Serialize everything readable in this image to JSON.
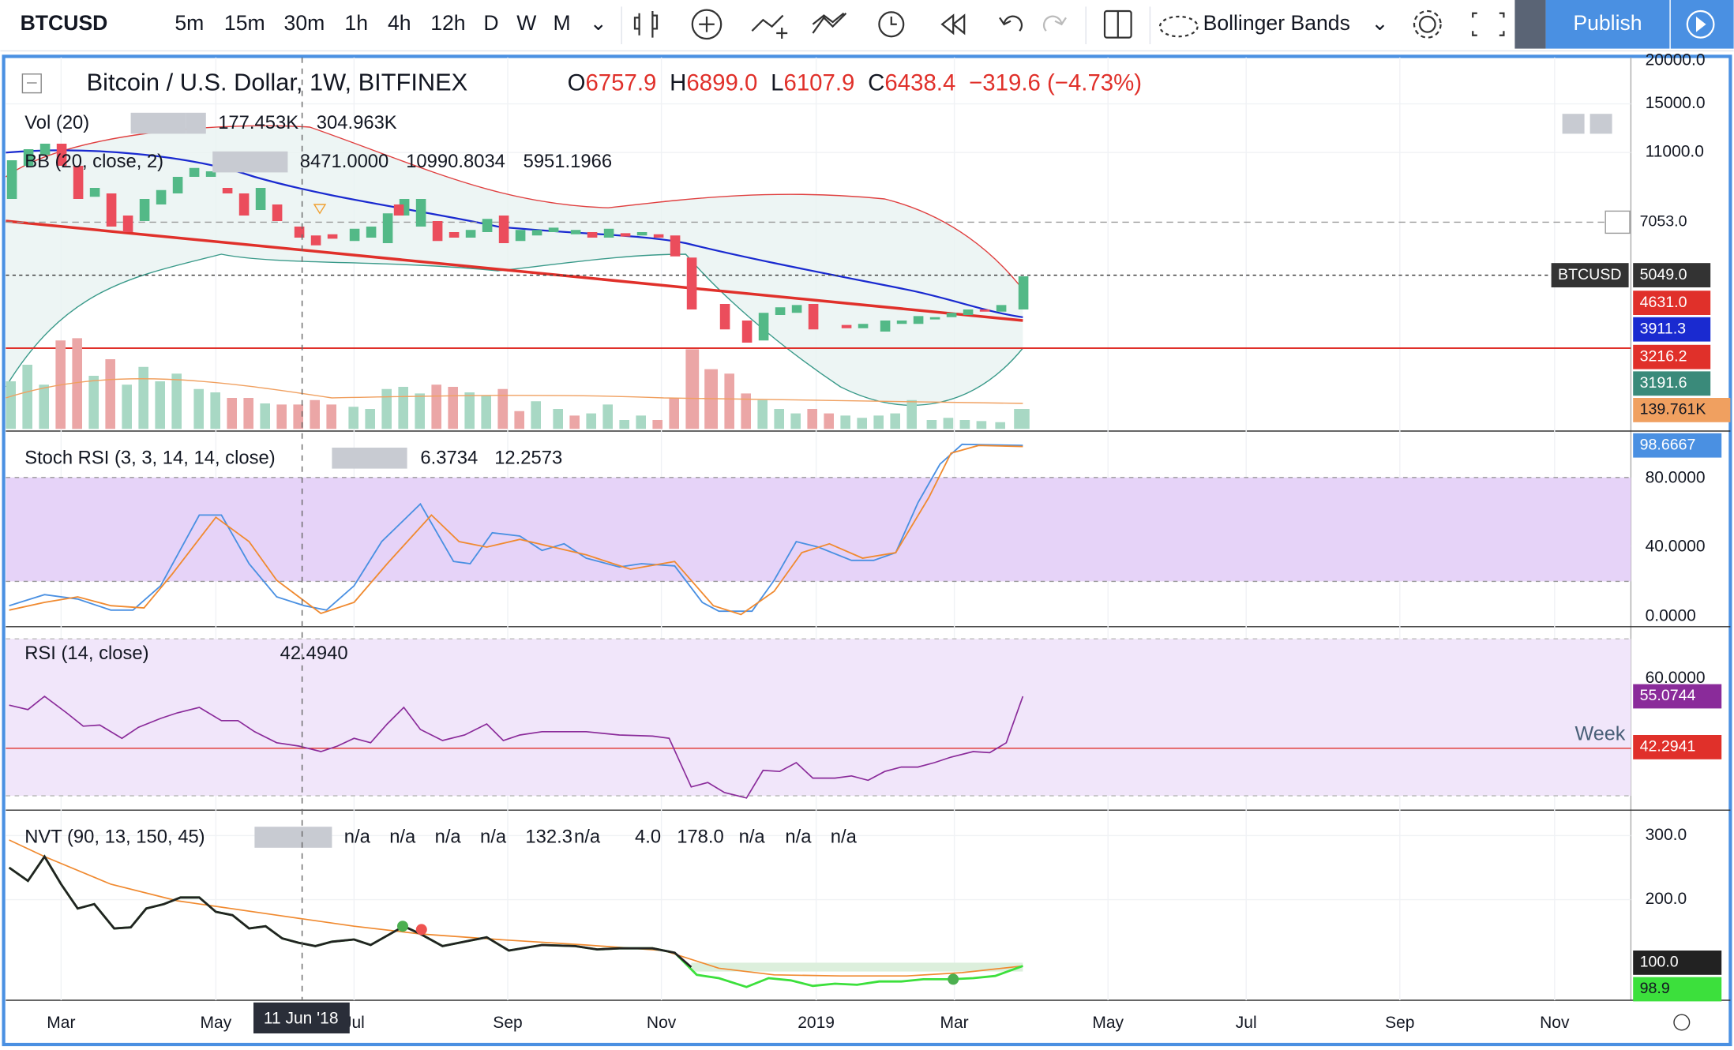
{
  "toolbar": {
    "symbol": "BTCUSD",
    "intervals": [
      "5m",
      "15m",
      "30m",
      "1h",
      "4h",
      "12h",
      "D",
      "W",
      "M"
    ],
    "indicator": "Bollinger Bands",
    "publish": "Publish"
  },
  "main_legend": {
    "title": "Bitcoin / U.S. Dollar, 1W, BITFINEX",
    "ohlc": [
      {
        "label": "O",
        "value": "6757.9"
      },
      {
        "label": "H",
        "value": "6899.0"
      },
      {
        "label": "L",
        "value": "6107.9"
      },
      {
        "label": "C",
        "value": "6438.4"
      }
    ],
    "change": "−319.6 (−4.73%)"
  },
  "volume": {
    "name": "Vol (20)",
    "values": [
      "177.453K",
      "304.963K"
    ]
  },
  "bollinger": {
    "name": "BB (20, close, 2)",
    "values": [
      "8471.0000",
      "10990.8034",
      "5951.1966"
    ]
  },
  "stoch_rsi": {
    "name": "Stoch RSI (3, 3, 14, 14, close)",
    "values": [
      "6.3734",
      "12.2573"
    ]
  },
  "rsi": {
    "name": "RSI (14, close)",
    "value": "42.4940"
  },
  "nvt": {
    "name": "NVT (90, 13, 150, 45)",
    "values": [
      "n/a",
      "n/a",
      "n/a",
      "n/a",
      "132.3",
      "n/a",
      "4.0",
      "178.0",
      "n/a",
      "n/a",
      "n/a"
    ]
  },
  "price_axis": {
    "ticks": [
      "20000.0",
      "15000.0",
      "11000.0"
    ],
    "tags": [
      "7053.0",
      "BTCUSD",
      "5049.0",
      "4631.0",
      "3911.3",
      "3216.2",
      "3191.6",
      "139.761K"
    ]
  },
  "stoch_axis": {
    "ticks": [
      "80.0000",
      "40.0000",
      "0.0000"
    ],
    "tag": "98.6667"
  },
  "rsi_axis": {
    "ticks": [
      "60.0000"
    ],
    "tags": [
      "55.0744",
      "42.2941"
    ],
    "label": "Week"
  },
  "nvt_axis": {
    "ticks": [
      "300.0",
      "200.0"
    ],
    "tags": [
      "100.0",
      "98.9"
    ]
  },
  "time_axis": {
    "labels": [
      "Mar",
      "May",
      "Jul",
      "Sep",
      "Nov",
      "2019",
      "Mar",
      "May",
      "Jul",
      "Sep",
      "Nov"
    ],
    "crosshair": "11 Jun '18"
  }
}
